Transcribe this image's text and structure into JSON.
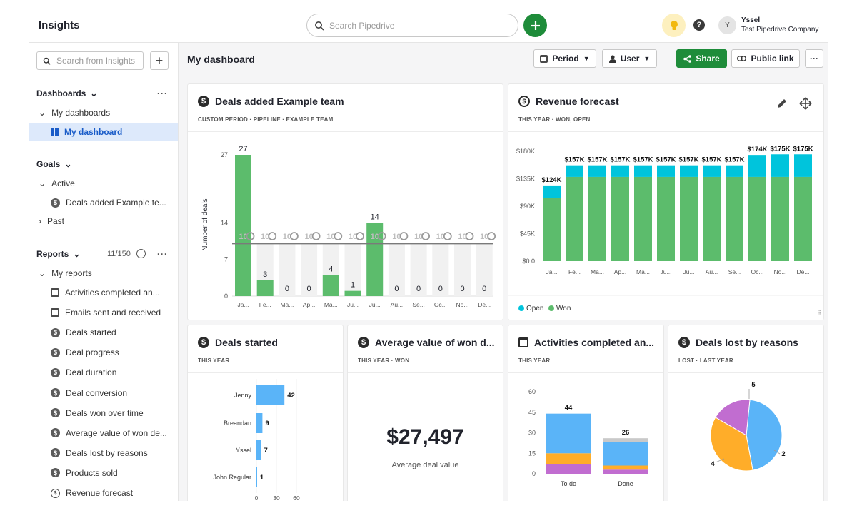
{
  "app": {
    "title": "Insights"
  },
  "topbar": {
    "search_placeholder": "Search Pipedrive",
    "user": {
      "initial": "Y",
      "name": "Yssel",
      "company": "Test Pipedrive Company"
    },
    "icons": [
      "search-icon",
      "plus-icon",
      "lightbulb-icon",
      "help-icon"
    ]
  },
  "sidebar": {
    "search_placeholder": "Search from Insights",
    "more": "···",
    "dashboards": {
      "title": "Dashboards",
      "my_dashboards": "My dashboards",
      "selected": "My dashboard"
    },
    "goals": {
      "title": "Goals",
      "active": "Active",
      "active_item": "Deals added Example te...",
      "past": "Past"
    },
    "reports": {
      "title": "Reports",
      "count": "11/150",
      "my_reports": "My reports",
      "items": [
        {
          "label": "Activities completed an...",
          "icon": "calendar-icon"
        },
        {
          "label": "Emails sent and received",
          "icon": "calendar-icon"
        },
        {
          "label": "Deals started",
          "icon": "dollar-icon"
        },
        {
          "label": "Deal progress",
          "icon": "dollar-icon"
        },
        {
          "label": "Deal duration",
          "icon": "dollar-icon"
        },
        {
          "label": "Deal conversion",
          "icon": "dollar-icon"
        },
        {
          "label": "Deals won over time",
          "icon": "dollar-icon"
        },
        {
          "label": "Average value of won de...",
          "icon": "dollar-icon"
        },
        {
          "label": "Deals lost by reasons",
          "icon": "dollar-icon"
        },
        {
          "label": "Products sold",
          "icon": "dollar-icon"
        },
        {
          "label": "Revenue forecast",
          "icon": "forecast-icon"
        }
      ]
    }
  },
  "toolbar": {
    "title": "My dashboard",
    "period": "Period",
    "user": "User",
    "share": "Share",
    "public_link": "Public link",
    "more": "···"
  },
  "colors": {
    "green": "#5cbc6c",
    "cyan": "#00c4dc",
    "blue": "#5ab4f8",
    "orange": "#ffad29",
    "purple": "#c16dd0",
    "brand_green": "#1e8c3a"
  },
  "cards": {
    "deals_added": {
      "title": "Deals added Example team",
      "subtitle": "CUSTOM PERIOD · PIPELINE · EXAMPLE TEAM"
    },
    "revenue": {
      "title": "Revenue forecast",
      "subtitle": "THIS YEAR · WON, OPEN"
    },
    "deals_started": {
      "title": "Deals started",
      "subtitle": "THIS YEAR"
    },
    "avg_value": {
      "title": "Average value of won d...",
      "subtitle": "THIS YEAR · WON",
      "value": "$27,497",
      "label": "Average deal value"
    },
    "activities": {
      "title": "Activities completed an...",
      "subtitle": "THIS YEAR"
    },
    "lost": {
      "title": "Deals lost by reasons",
      "subtitle": "LOST · LAST YEAR"
    }
  },
  "chart_data": [
    {
      "id": "deals-added",
      "type": "bar",
      "ylabel": "Number of deals",
      "yticks": [
        0,
        7,
        14,
        27
      ],
      "ylim": [
        0,
        27
      ],
      "categories": [
        "Ja...",
        "Fe...",
        "Ma...",
        "Ap...",
        "Ma...",
        "Ju...",
        "Ju...",
        "Au...",
        "Se...",
        "Oc...",
        "No...",
        "De..."
      ],
      "values": [
        27,
        3,
        0,
        0,
        4,
        1,
        14,
        0,
        0,
        0,
        0,
        0
      ],
      "goal": 10,
      "goal_label": "10"
    },
    {
      "id": "revenue-forecast",
      "type": "bar",
      "stacked": true,
      "ylim": [
        0,
        180000
      ],
      "yticks": [
        "$0.0",
        "$45K",
        "$90K",
        "$135K",
        "$180K"
      ],
      "categories": [
        "Ja...",
        "Fe...",
        "Ma...",
        "Ap...",
        "Ma...",
        "Ju...",
        "Ju...",
        "Au...",
        "Se...",
        "Oc...",
        "No...",
        "De..."
      ],
      "series": [
        {
          "name": "Won",
          "values": [
            104000,
            138000,
            138000,
            138000,
            138000,
            138000,
            138000,
            138000,
            138000,
            138000,
            138000,
            138000
          ]
        },
        {
          "name": "Open",
          "values": [
            20000,
            19000,
            19000,
            19000,
            19000,
            19000,
            19000,
            19000,
            19000,
            36000,
            37000,
            37000
          ]
        }
      ],
      "totals": [
        "$124K",
        "$157K",
        "$157K",
        "$157K",
        "$157K",
        "$157K",
        "$157K",
        "$157K",
        "$157K",
        "$174K",
        "$175K",
        "$175K"
      ],
      "legend": [
        "Open",
        "Won"
      ]
    },
    {
      "id": "deals-started",
      "type": "bar",
      "orientation": "horizontal",
      "categories": [
        "Jenny",
        "Breandan",
        "Yssel",
        "John Regular"
      ],
      "values": [
        42,
        9,
        7,
        1
      ],
      "xticks": [
        0,
        30,
        60
      ],
      "xlim": [
        0,
        60
      ]
    },
    {
      "id": "activities",
      "type": "bar",
      "stacked": true,
      "categories": [
        "To do",
        "Done"
      ],
      "yticks": [
        0,
        15,
        30,
        45,
        60
      ],
      "ylim": [
        0,
        60
      ],
      "series": [
        {
          "name": "purple",
          "values": [
            7,
            3
          ]
        },
        {
          "name": "orange",
          "values": [
            8,
            3
          ]
        },
        {
          "name": "blue",
          "values": [
            29,
            17
          ]
        },
        {
          "name": "grey",
          "values": [
            0,
            3
          ]
        }
      ],
      "totals": [
        44,
        26
      ]
    },
    {
      "id": "lost-reasons",
      "type": "pie",
      "values": [
        5,
        4,
        2
      ],
      "labels": [
        "5",
        "4",
        "2"
      ]
    }
  ]
}
